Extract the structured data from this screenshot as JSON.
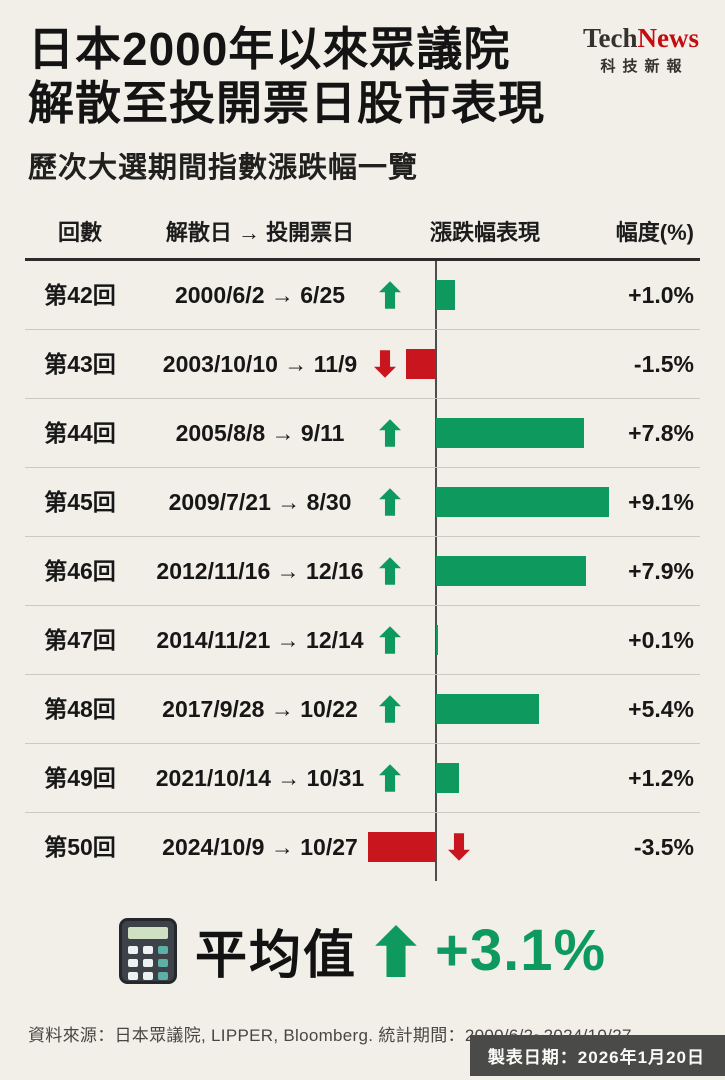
{
  "logo": {
    "part1": "Tech",
    "part2": "News",
    "tagline": "科技新報"
  },
  "header": {
    "title_line1": "日本2000年以來眾議院",
    "title_line2": "解散至投開票日股市表現",
    "subtitle": "歷次大選期間指數漲跌幅一覽"
  },
  "table": {
    "headers": [
      "回數",
      "解散日 → 投開票日",
      "漲跌幅表現",
      "幅度(%)"
    ]
  },
  "rows": [
    {
      "round": "第42回",
      "period": "2000/6/2 → 6/25",
      "value": 1.0,
      "label": "+1.0%",
      "direction": "up"
    },
    {
      "round": "第43回",
      "period": "2003/10/10 → 11/9",
      "value": -1.5,
      "label": "-1.5%",
      "direction": "down"
    },
    {
      "round": "第44回",
      "period": "2005/8/8 → 9/11",
      "value": 7.8,
      "label": "+7.8%",
      "direction": "up"
    },
    {
      "round": "第45回",
      "period": "2009/7/21 → 8/30",
      "value": 9.1,
      "label": "+9.1%",
      "direction": "up"
    },
    {
      "round": "第46回",
      "period": "2012/11/16 → 12/16",
      "value": 7.9,
      "label": "+7.9%",
      "direction": "up"
    },
    {
      "round": "第47回",
      "period": "2014/11/21 → 12/14",
      "value": 0.1,
      "label": "+0.1%",
      "direction": "up"
    },
    {
      "round": "第48回",
      "period": "2017/9/28 → 10/22",
      "value": 5.4,
      "label": "+5.4%",
      "direction": "up"
    },
    {
      "round": "第49回",
      "period": "2021/10/14 → 10/31",
      "value": 1.2,
      "label": "+1.2%",
      "direction": "up"
    },
    {
      "round": "第50回",
      "period": "2024/10/9 → 10/27",
      "value": -3.5,
      "label": "-3.5%",
      "direction": "down"
    }
  ],
  "summary": {
    "label": "平均值",
    "value": 3.1,
    "value_label": "+3.1%",
    "direction": "up"
  },
  "footer": {
    "source": "資料來源：日本眾議院, LIPPER, Bloomberg. 統計期間：2000/6/2~2024/10/27",
    "made_date": "製表日期：2026年1月20日"
  },
  "chart_data": {
    "type": "bar",
    "orientation": "horizontal",
    "title": "日本2000年以來眾議院解散至投開票日股市表現",
    "subtitle": "歷次大選期間指數漲跌幅一覽",
    "categories": [
      "第42回",
      "第43回",
      "第44回",
      "第45回",
      "第46回",
      "第47回",
      "第48回",
      "第49回",
      "第50回"
    ],
    "periods": [
      "2000/6/2 → 6/25",
      "2003/10/10 → 11/9",
      "2005/8/8 → 9/11",
      "2009/7/21 → 8/30",
      "2012/11/16 → 12/16",
      "2014/11/21 → 12/14",
      "2017/9/28 → 10/22",
      "2021/10/14 → 10/31",
      "2024/10/9 → 10/27"
    ],
    "values": [
      1.0,
      -1.5,
      7.8,
      9.1,
      7.9,
      0.1,
      5.4,
      1.2,
      -3.5
    ],
    "value_labels": [
      "+1.0%",
      "-1.5%",
      "+7.8%",
      "+9.1%",
      "+7.9%",
      "+0.1%",
      "+5.4%",
      "+1.2%",
      "-3.5%"
    ],
    "unit": "%",
    "average": 3.1,
    "xlim": [
      -4,
      10
    ],
    "grid": false,
    "legend": false,
    "colors": {
      "positive": "#0e9a5e",
      "negative": "#c9151e",
      "axis": "#4d4d4d"
    }
  }
}
